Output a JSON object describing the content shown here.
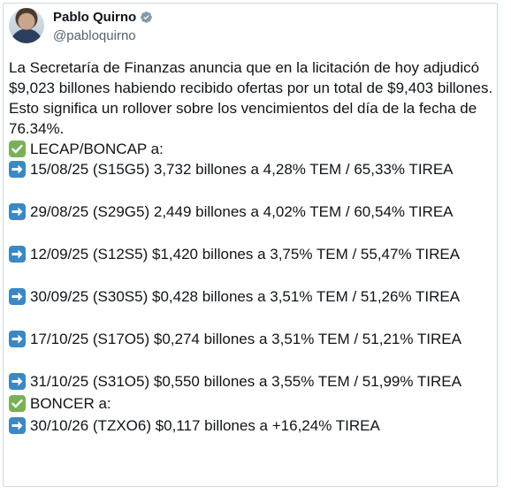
{
  "author": {
    "name": "Pablo Quirno",
    "handle": "@pabloquirno",
    "verified_color": "#829aab"
  },
  "tweet": {
    "intro": "La Secretaría de Finanzas anuncia que en la licitación de hoy adjudicó $9,023 billones habiendo recibido ofertas por un total de $9,403 billones.",
    "rollover": "Esto significa un rollover sobre los vencimientos del día de la fecha de 76.34%.",
    "lecap_header": "LECAP/BONCAP a:",
    "lecap_items": [
      "15/08/25 (S15G5) 3,732 billones a 4,28% TEM / 65,33% TIREA",
      "29/08/25 (S29G5) 2,449 billones a 4,02% TEM / 60,54% TIREA",
      "12/09/25 (S12S5) $1,420 billones a 3,75% TEM / 55,47% TIREA",
      "30/09/25 (S30S5) $0,428 billones a 3,51% TEM / 51,26% TIREA",
      "17/10/25 (S17O5) $0,274 billones a 3,51% TEM / 51,21% TIREA",
      "31/10/25 (S31O5) $0,550 billones a 3,55% TEM / 51,99% TIREA"
    ],
    "boncer_header": "BONCER a:",
    "boncer_items": [
      "30/10/26 (TZXO6) $0,117 billones a +16,24% TIREA"
    ]
  },
  "colors": {
    "check_emoji": "#78b159",
    "arrow_emoji": "#3b88c3",
    "handle_text": "#536471"
  }
}
